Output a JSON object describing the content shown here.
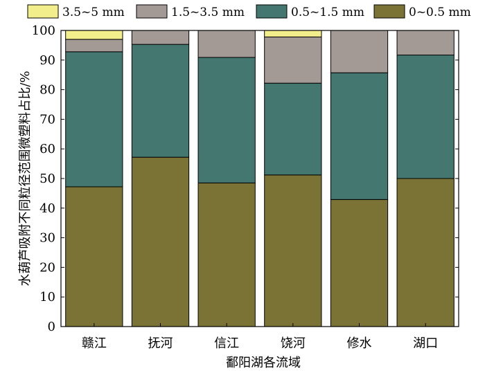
{
  "chart_data": {
    "type": "bar",
    "stacked": true,
    "title": "",
    "xlabel": "鄱阳湖各流域",
    "ylabel": "水葫芦吸附不同粒径范围微塑料占比/%",
    "ylim": [
      0,
      100
    ],
    "yticks": [
      0,
      10,
      20,
      30,
      40,
      50,
      60,
      70,
      80,
      90,
      100
    ],
    "grid": false,
    "legend_position": "top",
    "categories": [
      "赣江",
      "抚河",
      "信江",
      "饶河",
      "修水",
      "湖口"
    ],
    "series": [
      {
        "name": "0~0.5 mm",
        "color": "#7b7335",
        "values": [
          47.2,
          57.2,
          48.5,
          51.2,
          42.9,
          50.0
        ]
      },
      {
        "name": "0.5~1.5 mm",
        "color": "#437770",
        "values": [
          45.6,
          38.1,
          42.4,
          31.0,
          42.8,
          41.7
        ]
      },
      {
        "name": "1.5~3.5 mm",
        "color": "#a39a96",
        "values": [
          4.2,
          4.7,
          9.1,
          15.6,
          14.3,
          8.3
        ]
      },
      {
        "name": "3.5~5 mm",
        "color": "#f3ee8c",
        "values": [
          3.0,
          0,
          0,
          2.2,
          0,
          0
        ]
      }
    ],
    "legend_order": [
      "3.5~5 mm",
      "1.5~3.5 mm",
      "0.5~1.5 mm",
      "0~0.5 mm"
    ]
  }
}
